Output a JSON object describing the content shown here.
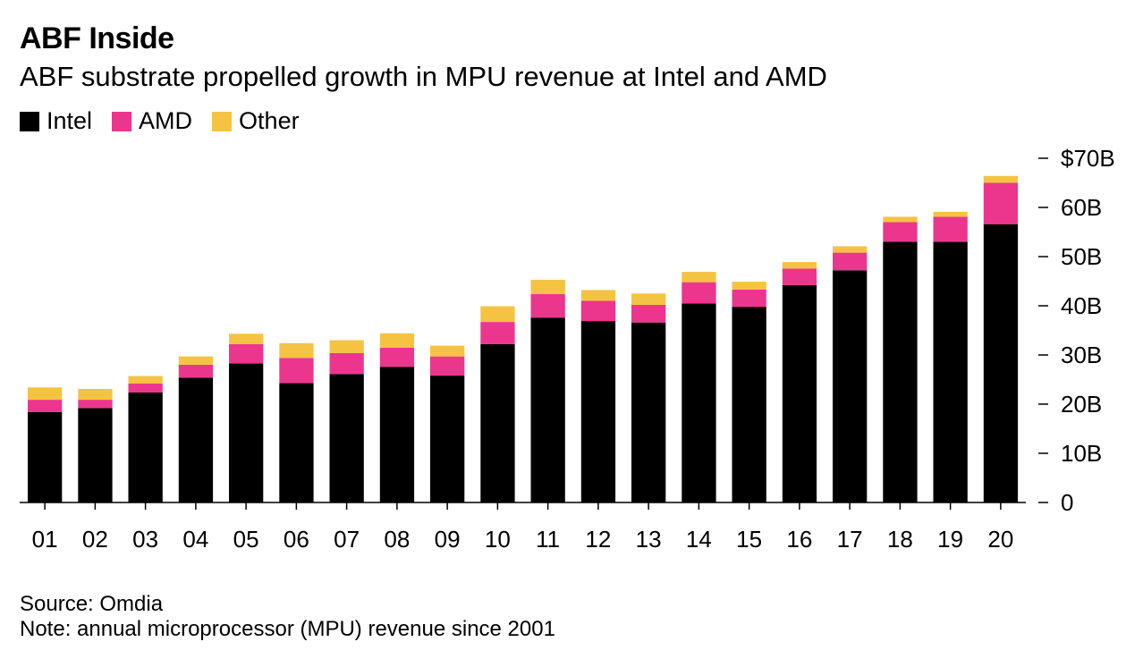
{
  "title": "ABF Inside",
  "subtitle": "ABF substrate propelled growth in MPU revenue at Intel and AMD",
  "legend": [
    {
      "label": "Intel",
      "color": "#000000"
    },
    {
      "label": "AMD",
      "color": "#ec368d"
    },
    {
      "label": "Other",
      "color": "#f5c342"
    }
  ],
  "chart_data": {
    "type": "bar",
    "stacked": true,
    "categories": [
      "01",
      "02",
      "03",
      "04",
      "05",
      "06",
      "07",
      "08",
      "09",
      "10",
      "11",
      "12",
      "13",
      "14",
      "15",
      "16",
      "17",
      "18",
      "19",
      "20"
    ],
    "series": [
      {
        "name": "Intel",
        "color": "#000000",
        "values": [
          18.4,
          19.2,
          22.4,
          25.4,
          28.3,
          24.3,
          26.1,
          27.6,
          25.8,
          32.2,
          37.6,
          36.9,
          36.6,
          40.5,
          39.8,
          44.2,
          47.2,
          53.0,
          53.0,
          56.6
        ]
      },
      {
        "name": "AMD",
        "color": "#ec368d",
        "values": [
          2.5,
          1.7,
          1.8,
          2.6,
          3.9,
          5.1,
          4.3,
          3.9,
          3.9,
          4.5,
          4.8,
          4.1,
          3.6,
          4.3,
          3.5,
          3.4,
          3.6,
          4.0,
          5.1,
          8.4
        ]
      },
      {
        "name": "Other",
        "color": "#f5c342",
        "values": [
          2.5,
          2.2,
          1.5,
          1.7,
          2.1,
          3.0,
          2.6,
          2.9,
          2.2,
          3.2,
          2.9,
          2.2,
          2.3,
          2.1,
          1.6,
          1.3,
          1.3,
          1.1,
          1.0,
          1.4
        ]
      }
    ],
    "y_ticks": [
      "0",
      "10B",
      "20B",
      "30B",
      "40B",
      "50B",
      "60B",
      "$70B"
    ],
    "ylim": [
      0,
      70
    ],
    "y_axis_position": "right",
    "grid": false,
    "legend_position": "top-left"
  },
  "source": "Source: Omdia",
  "note": "Note: annual microprocessor (MPU) revenue since 2001"
}
